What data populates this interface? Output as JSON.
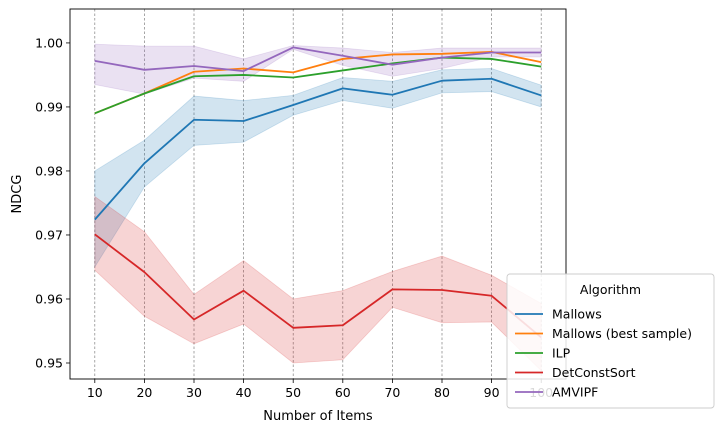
{
  "chart_data": {
    "type": "line",
    "xlabel": "Number of Items",
    "ylabel": "NDCG",
    "x": [
      10,
      20,
      30,
      40,
      50,
      60,
      70,
      80,
      90,
      100
    ],
    "xlim": [
      5,
      105
    ],
    "ylim": [
      0.9475,
      1.0053
    ],
    "yticks": [
      0.95,
      0.96,
      0.97,
      0.98,
      0.99,
      1.0
    ],
    "ytick_labels": [
      "0.95",
      "0.96",
      "0.97",
      "0.98",
      "0.99",
      "1.00"
    ],
    "xtick_labels": [
      "10",
      "20",
      "30",
      "40",
      "50",
      "60",
      "70",
      "80",
      "90",
      "100"
    ],
    "grid": "vertical dashed",
    "legend": {
      "title": "Algorithm",
      "placement": "bottom-right"
    },
    "series": [
      {
        "name": "Mallows",
        "color": "#1f77b4",
        "values": [
          0.9724,
          0.9812,
          0.988,
          0.9878,
          0.9903,
          0.9929,
          0.9919,
          0.9941,
          0.9944,
          0.9918
        ],
        "lower": [
          0.965,
          0.9775,
          0.984,
          0.9845,
          0.9887,
          0.991,
          0.9898,
          0.9922,
          0.9924,
          0.99
        ],
        "upper": [
          0.98,
          0.9848,
          0.9917,
          0.991,
          0.9918,
          0.9946,
          0.994,
          0.9958,
          0.996,
          0.9934
        ]
      },
      {
        "name": "Mallows (best sample)",
        "color": "#ff7f0e",
        "values": [
          0.989,
          0.9921,
          0.9955,
          0.996,
          0.9954,
          0.9975,
          0.9982,
          0.9983,
          0.9986,
          0.997
        ]
      },
      {
        "name": "ILP",
        "color": "#2ca02c",
        "values": [
          0.989,
          0.9921,
          0.9948,
          0.995,
          0.9946,
          0.9957,
          0.9968,
          0.9977,
          0.9975,
          0.9963
        ]
      },
      {
        "name": "DetConstSort",
        "color": "#d62728",
        "values": [
          0.9701,
          0.9642,
          0.9568,
          0.9613,
          0.9555,
          0.9559,
          0.9615,
          0.9614,
          0.9605,
          0.954
        ],
        "lower": [
          0.9645,
          0.9573,
          0.953,
          0.9561,
          0.95,
          0.9505,
          0.9587,
          0.9563,
          0.9564,
          0.9488
        ],
        "upper": [
          0.976,
          0.9705,
          0.9607,
          0.966,
          0.96,
          0.9613,
          0.9643,
          0.9667,
          0.9637,
          0.9593
        ]
      },
      {
        "name": "AMVIPF",
        "color": "#9467bd",
        "values": [
          0.9972,
          0.9958,
          0.9964,
          0.9956,
          0.9993,
          0.998,
          0.9966,
          0.9977,
          0.9985,
          0.9985
        ],
        "lower": [
          0.9935,
          0.992,
          0.9945,
          0.994,
          0.999,
          0.9965,
          0.9948,
          0.996,
          0.9978,
          0.9978
        ],
        "upper": [
          0.9998,
          0.9995,
          0.9995,
          0.9975,
          0.9996,
          0.9992,
          0.9985,
          0.9992,
          0.9992,
          0.9992
        ]
      }
    ]
  }
}
